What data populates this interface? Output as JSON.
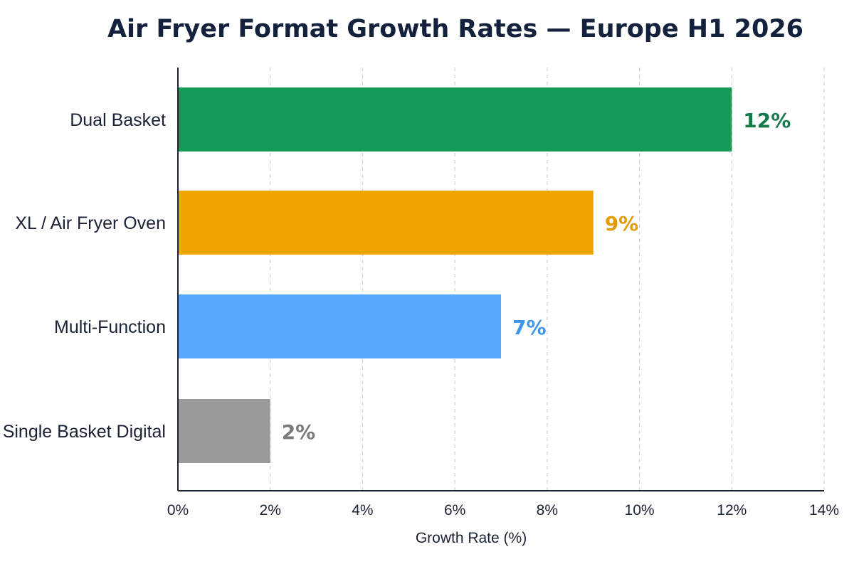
{
  "chart_data": {
    "type": "bar",
    "orientation": "horizontal",
    "title": "Air Fryer Format Growth Rates — Europe H1 2026",
    "xlabel": "Growth Rate (%)",
    "ylabel": "",
    "xlim": [
      0,
      14
    ],
    "x_ticks": [
      0,
      2,
      4,
      6,
      8,
      10,
      12,
      14
    ],
    "x_tick_labels": [
      "0%",
      "2%",
      "4%",
      "6%",
      "8%",
      "10%",
      "12%",
      "14%"
    ],
    "grid": "vertical dashed",
    "legend": "none",
    "categories": [
      "Dual Basket",
      "XL / Air Fryer Oven",
      "Multi-Function",
      "Single Basket Digital"
    ],
    "values": [
      12,
      9,
      7,
      2
    ],
    "value_labels": [
      "12%",
      "9%",
      "7%",
      "2%"
    ],
    "colors": [
      "#169a58",
      "#f0a500",
      "#56a8fa",
      "#9a9a9a"
    ],
    "label_colors": [
      "#167a4c",
      "#e39b08",
      "#3f95e8",
      "#7a7a7a"
    ]
  }
}
